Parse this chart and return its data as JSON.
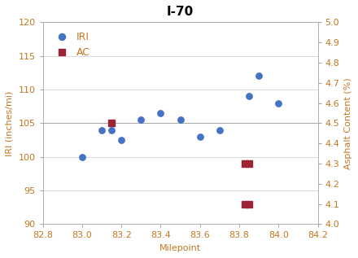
{
  "title": "I-70",
  "xlabel": "Milepoint",
  "ylabel_left": "IRI (inches/mi)",
  "ylabel_right": "Asphalt Content (%)",
  "xlim": [
    82.8,
    84.2
  ],
  "ylim_left": [
    90,
    120
  ],
  "ylim_right": [
    4.0,
    5.0
  ],
  "yticks_left": [
    90,
    95,
    100,
    105,
    110,
    115,
    120
  ],
  "yticks_right": [
    4.0,
    4.1,
    4.2,
    4.3,
    4.4,
    4.5,
    4.6,
    4.7,
    4.8,
    4.9,
    5.0
  ],
  "xticks": [
    82.8,
    83.0,
    83.2,
    83.4,
    83.6,
    83.8,
    84.0,
    84.2
  ],
  "iri_x": [
    83.0,
    83.1,
    83.15,
    83.2,
    83.3,
    83.4,
    83.5,
    83.6,
    83.7,
    83.85,
    83.9,
    84.0
  ],
  "iri_y": [
    100.0,
    104.0,
    104.0,
    102.5,
    105.5,
    106.5,
    105.5,
    103.0,
    104.0,
    109.0,
    112.0,
    108.0
  ],
  "ac_x": [
    83.15,
    83.83,
    83.85,
    83.83,
    83.85
  ],
  "ac_y": [
    4.5,
    4.1,
    4.1,
    4.3,
    4.3
  ],
  "iri_color": "#4472C4",
  "ac_color": "#9B2335",
  "axis_label_color": "#C07820",
  "tick_label_color": "#C07820",
  "hline_y": 105.0,
  "hline_color": "#AAAAAA",
  "grid_color": "#CCCCCC",
  "background_color": "#FFFFFF",
  "legend_iri": "IRI",
  "legend_ac": "AC",
  "title_fontsize": 11,
  "label_fontsize": 8,
  "tick_fontsize": 8,
  "marker_size_iri": 28,
  "marker_size_ac": 28
}
